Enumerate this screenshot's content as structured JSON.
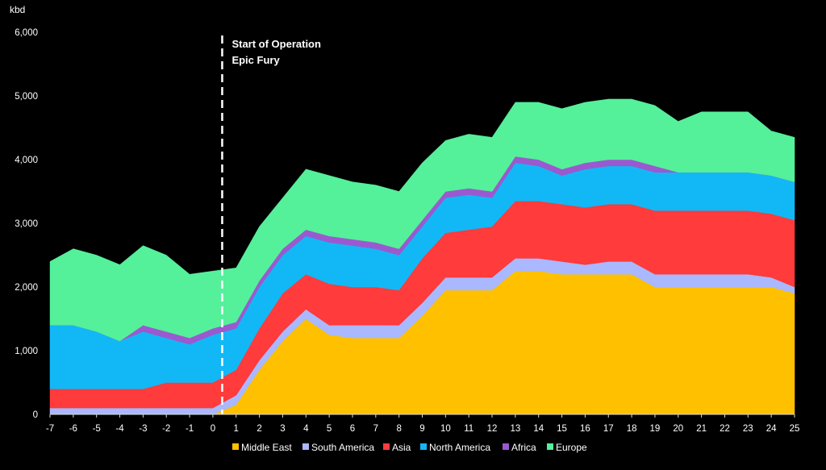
{
  "chart_data": {
    "type": "area",
    "stacked": true,
    "ylabel": "kbd",
    "ylim": [
      0,
      6000
    ],
    "yticks": [
      0,
      1000,
      2000,
      3000,
      4000,
      5000,
      6000
    ],
    "ytick_labels": [
      "0",
      "1,000",
      "2,000",
      "3,000",
      "4,000",
      "5,000",
      "6,000"
    ],
    "xlim": [
      -7,
      25
    ],
    "x": [
      -7,
      -6,
      -5,
      -4,
      -3,
      -2,
      -1,
      0,
      1,
      2,
      3,
      4,
      5,
      6,
      7,
      8,
      9,
      10,
      11,
      12,
      13,
      14,
      15,
      16,
      17,
      18,
      19,
      20,
      21,
      22,
      23,
      24,
      25
    ],
    "grid": false,
    "legend_position": "bottom",
    "annotation": {
      "x": 0.4,
      "text_lines": [
        "Start of Operation",
        "Epic Fury"
      ]
    },
    "series": [
      {
        "name": "Middle East",
        "color": "#FFC000",
        "values": [
          0,
          0,
          0,
          0,
          0,
          0,
          0,
          0,
          150,
          700,
          1150,
          1500,
          1250,
          1200,
          1200,
          1200,
          1550,
          1950,
          1950,
          1950,
          2250,
          2250,
          2200,
          2200,
          2200,
          2200,
          2000,
          2000,
          2000,
          2000,
          2000,
          2000,
          1900
        ]
      },
      {
        "name": "South America",
        "color": "#A9B8FF",
        "values": [
          100,
          100,
          100,
          100,
          100,
          100,
          100,
          100,
          150,
          150,
          150,
          150,
          150,
          200,
          200,
          200,
          200,
          200,
          200,
          200,
          200,
          200,
          200,
          150,
          200,
          200,
          200,
          200,
          200,
          200,
          200,
          150,
          100
        ]
      },
      {
        "name": "Asia",
        "color": "#FF3B3B",
        "values": [
          300,
          300,
          300,
          300,
          300,
          400,
          400,
          400,
          400,
          500,
          600,
          550,
          650,
          600,
          600,
          550,
          700,
          700,
          750,
          800,
          900,
          900,
          900,
          900,
          900,
          900,
          1000,
          1000,
          1000,
          1000,
          1000,
          1000,
          1050
        ]
      },
      {
        "name": "North America",
        "color": "#12B8F6",
        "values": [
          1000,
          1000,
          900,
          750,
          900,
          700,
          600,
          750,
          650,
          650,
          600,
          600,
          650,
          650,
          600,
          550,
          500,
          550,
          550,
          450,
          600,
          550,
          450,
          600,
          600,
          600,
          600,
          600,
          600,
          600,
          600,
          600,
          600
        ]
      },
      {
        "name": "Africa",
        "color": "#9B59D0",
        "values": [
          0,
          0,
          0,
          0,
          100,
          100,
          100,
          100,
          100,
          100,
          100,
          100,
          100,
          100,
          100,
          100,
          100,
          100,
          100,
          100,
          100,
          100,
          100,
          100,
          100,
          100,
          100,
          0,
          0,
          0,
          0,
          0,
          0
        ]
      },
      {
        "name": "Europe",
        "color": "#55F09A",
        "values": [
          1000,
          1200,
          1200,
          1200,
          1250,
          1200,
          1000,
          900,
          850,
          850,
          800,
          950,
          950,
          900,
          900,
          900,
          900,
          800,
          850,
          850,
          850,
          900,
          950,
          950,
          950,
          950,
          950,
          800,
          950,
          950,
          950,
          700,
          700
        ]
      }
    ]
  }
}
